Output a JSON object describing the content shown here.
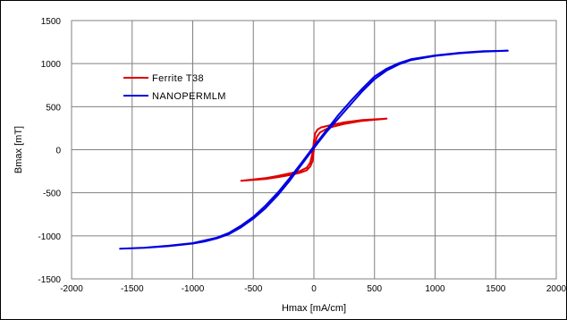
{
  "chart_data": {
    "type": "line",
    "title": "",
    "xlabel": "Hmax [mA/cm]",
    "ylabel": "Bmax [mT]",
    "xlim": [
      -2000,
      2000
    ],
    "ylim": [
      -1500,
      1500
    ],
    "x_ticks": [
      -2000,
      -1500,
      -1000,
      -500,
      0,
      500,
      1000,
      1500,
      2000
    ],
    "y_ticks": [
      -1500,
      -1000,
      -500,
      0,
      500,
      1000,
      1500
    ],
    "x_tick_labels": [
      "-2000",
      "-1500",
      "-1000",
      "-500",
      "0",
      "500",
      "1000",
      "1500",
      "2000"
    ],
    "y_tick_labels": [
      "-1500",
      "-1000",
      "-500",
      "0",
      "500",
      "1000",
      "1500"
    ],
    "grid": true,
    "legend_position": "upper-left",
    "series": [
      {
        "name": "Ferrite T38",
        "color": "#e00000",
        "points": [
          [
            -600,
            -360
          ],
          [
            -400,
            -340
          ],
          [
            -300,
            -320
          ],
          [
            -200,
            -295
          ],
          [
            -120,
            -270
          ],
          [
            -60,
            -240
          ],
          [
            -30,
            -195
          ],
          [
            -10,
            -130
          ],
          [
            0,
            0
          ],
          [
            10,
            80
          ],
          [
            25,
            150
          ],
          [
            50,
            200
          ],
          [
            100,
            240
          ],
          [
            150,
            265
          ],
          [
            250,
            300
          ],
          [
            400,
            335
          ],
          [
            600,
            360
          ],
          [
            400,
            345
          ],
          [
            250,
            318
          ],
          [
            150,
            290
          ],
          [
            60,
            260
          ],
          [
            30,
            235
          ],
          [
            10,
            190
          ],
          [
            0,
            100
          ],
          [
            -10,
            -30
          ],
          [
            -30,
            -150
          ],
          [
            -60,
            -210
          ],
          [
            -120,
            -250
          ],
          [
            -200,
            -275
          ],
          [
            -300,
            -305
          ],
          [
            -400,
            -330
          ],
          [
            -600,
            -360
          ]
        ]
      },
      {
        "name": "NANOPERMLM",
        "color": "#0000e0",
        "points": [
          [
            -1600,
            -1150
          ],
          [
            -1400,
            -1140
          ],
          [
            -1200,
            -1120
          ],
          [
            -1000,
            -1090
          ],
          [
            -900,
            -1065
          ],
          [
            -800,
            -1030
          ],
          [
            -700,
            -980
          ],
          [
            -600,
            -900
          ],
          [
            -500,
            -800
          ],
          [
            -400,
            -680
          ],
          [
            -300,
            -530
          ],
          [
            -200,
            -360
          ],
          [
            -100,
            -170
          ],
          [
            0,
            20
          ],
          [
            100,
            200
          ],
          [
            200,
            360
          ],
          [
            300,
            520
          ],
          [
            400,
            680
          ],
          [
            500,
            820
          ],
          [
            600,
            920
          ],
          [
            700,
            990
          ],
          [
            800,
            1040
          ],
          [
            1000,
            1090
          ],
          [
            1200,
            1120
          ],
          [
            1400,
            1140
          ],
          [
            1600,
            1150
          ],
          [
            1400,
            1145
          ],
          [
            1200,
            1125
          ],
          [
            1000,
            1095
          ],
          [
            800,
            1050
          ],
          [
            700,
            1005
          ],
          [
            600,
            940
          ],
          [
            500,
            850
          ],
          [
            400,
            710
          ],
          [
            300,
            560
          ],
          [
            200,
            400
          ],
          [
            100,
            220
          ],
          [
            0,
            40
          ],
          [
            -100,
            -150
          ],
          [
            -200,
            -330
          ],
          [
            -300,
            -500
          ],
          [
            -400,
            -650
          ],
          [
            -500,
            -780
          ],
          [
            -600,
            -880
          ],
          [
            -700,
            -965
          ],
          [
            -800,
            -1020
          ],
          [
            -1000,
            -1085
          ],
          [
            -1200,
            -1115
          ],
          [
            -1400,
            -1138
          ],
          [
            -1600,
            -1150
          ]
        ]
      }
    ]
  }
}
